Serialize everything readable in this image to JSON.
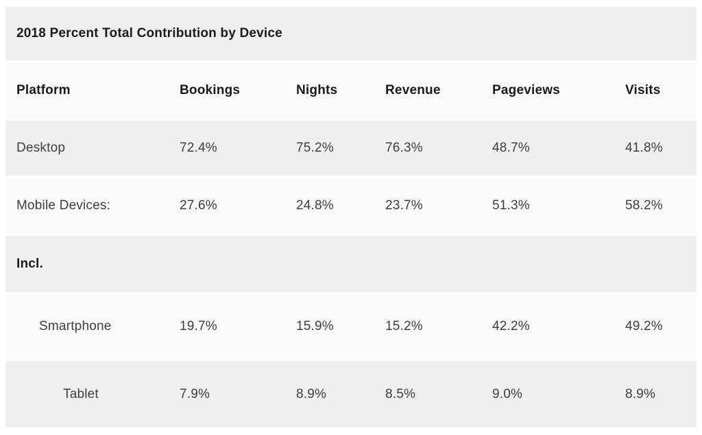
{
  "title": "2018 Percent Total Contribution by Device",
  "colors": {
    "row_stripe_dark": "#efefef",
    "row_stripe_light": "#f9f9f9",
    "heading_text": "#1b1b1b",
    "body_text": "#3e3e3e",
    "page_background": "#ffffff"
  },
  "table": {
    "columns": [
      "Platform",
      "Bookings",
      "Nights",
      "Revenue",
      "Pageviews",
      "Visits"
    ],
    "rows": [
      {
        "platform": "Desktop",
        "values": [
          "72.4%",
          "75.2%",
          "76.3%",
          "48.7%",
          "41.8%"
        ]
      },
      {
        "platform": "Mobile Devices:",
        "values": [
          "27.6%",
          "24.8%",
          "23.7%",
          "51.3%",
          "58.2%"
        ]
      },
      {
        "platform": "Incl.",
        "values": [
          "",
          "",
          "",
          "",
          ""
        ]
      },
      {
        "platform": "Smartphone",
        "values": [
          "19.7%",
          "15.9%",
          "15.2%",
          "42.2%",
          "49.2%"
        ]
      },
      {
        "platform": "Tablet",
        "values": [
          "7.9%",
          "8.9%",
          "8.5%",
          "9.0%",
          "8.9%"
        ]
      }
    ]
  },
  "chart_data": {
    "type": "table",
    "title": "2018 Percent Total Contribution by Device",
    "columns": [
      "Platform",
      "Bookings",
      "Nights",
      "Revenue",
      "Pageviews",
      "Visits"
    ],
    "unit": "%",
    "rows": [
      {
        "platform": "Desktop",
        "values": [
          72.4,
          75.2,
          76.3,
          48.7,
          41.8
        ]
      },
      {
        "platform": "Mobile Devices",
        "values": [
          27.6,
          24.8,
          23.7,
          51.3,
          58.2
        ]
      },
      {
        "platform": "Incl.",
        "values": []
      },
      {
        "platform": "Smartphone",
        "values": [
          19.7,
          15.9,
          15.2,
          42.2,
          49.2
        ]
      },
      {
        "platform": "Tablet",
        "values": [
          7.9,
          8.9,
          8.5,
          9.0,
          8.9
        ]
      }
    ]
  }
}
